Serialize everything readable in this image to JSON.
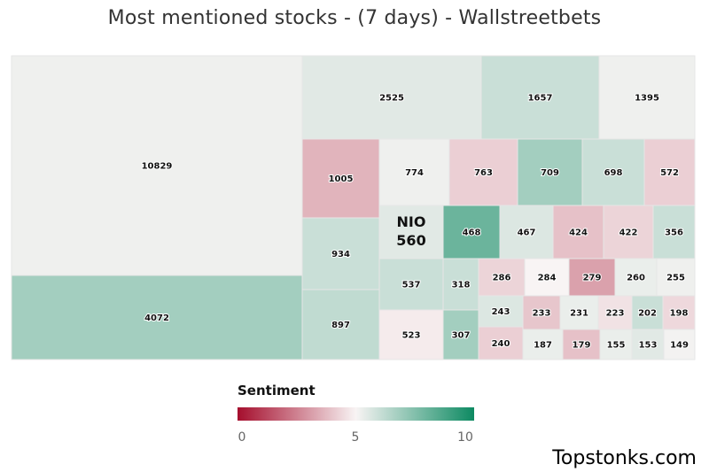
{
  "chart_data": {
    "type": "treemap",
    "title": "Most mentioned stocks - (7 days) - Wallstreetbets",
    "value_label": "mentions",
    "color_label": "Sentiment",
    "color_scale": {
      "min": 0,
      "mid": 5,
      "max": 10,
      "colors": [
        "#a50e2d",
        "#f8f4f4",
        "#0d8a62"
      ],
      "ticks": [
        "0",
        "5",
        "10"
      ]
    },
    "highlighted": {
      "label": "NIO",
      "value": 560
    },
    "cells": [
      {
        "value": 10829,
        "sentiment": 5.2
      },
      {
        "value": 4072,
        "sentiment": 6.8
      },
      {
        "value": 2525,
        "sentiment": 5.5
      },
      {
        "value": 1657,
        "sentiment": 6.0
      },
      {
        "value": 1395,
        "sentiment": 5.2
      },
      {
        "value": 1005,
        "sentiment": 3.6
      },
      {
        "value": 774,
        "sentiment": 5.2
      },
      {
        "value": 763,
        "sentiment": 4.2
      },
      {
        "value": 709,
        "sentiment": 6.8
      },
      {
        "value": 698,
        "sentiment": 6.0
      },
      {
        "value": 572,
        "sentiment": 4.2
      },
      {
        "value": 934,
        "sentiment": 6.0
      },
      {
        "value": 560,
        "sentiment": 5.5,
        "label": "NIO"
      },
      {
        "value": 468,
        "sentiment": 8.0
      },
      {
        "value": 467,
        "sentiment": 5.6
      },
      {
        "value": 424,
        "sentiment": 3.9
      },
      {
        "value": 422,
        "sentiment": 4.3
      },
      {
        "value": 356,
        "sentiment": 6.0
      },
      {
        "value": 897,
        "sentiment": 6.2
      },
      {
        "value": 537,
        "sentiment": 6.0
      },
      {
        "value": 318,
        "sentiment": 6.0
      },
      {
        "value": 286,
        "sentiment": 4.3
      },
      {
        "value": 284,
        "sentiment": 5.0
      },
      {
        "value": 279,
        "sentiment": 3.2
      },
      {
        "value": 260,
        "sentiment": 5.3
      },
      {
        "value": 255,
        "sentiment": 5.2
      },
      {
        "value": 523,
        "sentiment": 4.8
      },
      {
        "value": 307,
        "sentiment": 6.8
      },
      {
        "value": 243,
        "sentiment": 5.6
      },
      {
        "value": 233,
        "sentiment": 4.0
      },
      {
        "value": 231,
        "sentiment": 5.3
      },
      {
        "value": 223,
        "sentiment": 4.6
      },
      {
        "value": 202,
        "sentiment": 6.0
      },
      {
        "value": 198,
        "sentiment": 4.4
      },
      {
        "value": 240,
        "sentiment": 4.2
      },
      {
        "value": 187,
        "sentiment": 5.3
      },
      {
        "value": 179,
        "sentiment": 3.9
      },
      {
        "value": 155,
        "sentiment": 5.3
      },
      {
        "value": 153,
        "sentiment": 5.5
      },
      {
        "value": 149,
        "sentiment": 5.1
      }
    ]
  },
  "watermark": "Topstonks.com"
}
